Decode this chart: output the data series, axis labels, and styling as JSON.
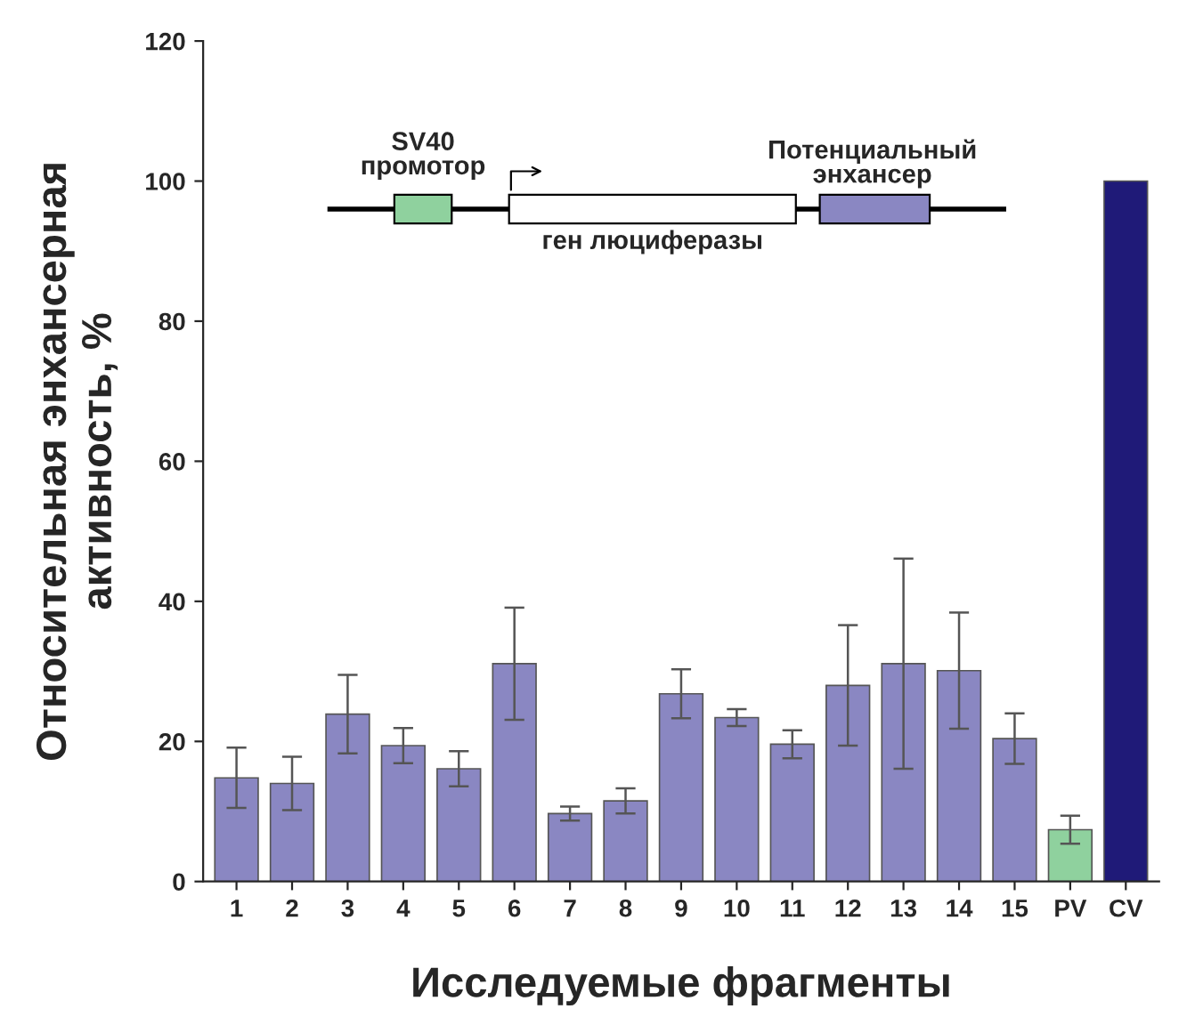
{
  "chart_data": {
    "type": "bar",
    "xlabel": "Исследуемые фрагменты",
    "ylabel": "Относительная энхансерная\nактивность, %",
    "categories": [
      "1",
      "2",
      "3",
      "4",
      "5",
      "6",
      "7",
      "8",
      "9",
      "10",
      "11",
      "12",
      "13",
      "14",
      "15",
      "PV",
      "CV"
    ],
    "values": [
      14.8,
      14.0,
      23.9,
      19.4,
      16.1,
      31.1,
      9.7,
      11.5,
      26.8,
      23.4,
      19.6,
      28.0,
      31.1,
      30.1,
      20.4,
      7.4,
      100
    ],
    "errors": [
      4.3,
      3.8,
      5.6,
      2.5,
      2.5,
      8.0,
      1.0,
      1.8,
      3.5,
      1.2,
      2.0,
      8.6,
      15.0,
      8.3,
      3.6,
      2.0,
      null
    ],
    "colors": [
      "#8a87c2",
      "#8a87c2",
      "#8a87c2",
      "#8a87c2",
      "#8a87c2",
      "#8a87c2",
      "#8a87c2",
      "#8a87c2",
      "#8a87c2",
      "#8a87c2",
      "#8a87c2",
      "#8a87c2",
      "#8a87c2",
      "#8a87c2",
      "#8a87c2",
      "#8fd19e",
      "#1f1a78"
    ],
    "ylim": [
      0,
      120
    ],
    "yticks": [
      0,
      20,
      40,
      60,
      80,
      100,
      120
    ],
    "grid": false,
    "legend": false,
    "annotations": [
      "SV40\nпромотор",
      "ген люциферазы",
      "Потенциальный\nэнхансер"
    ]
  }
}
